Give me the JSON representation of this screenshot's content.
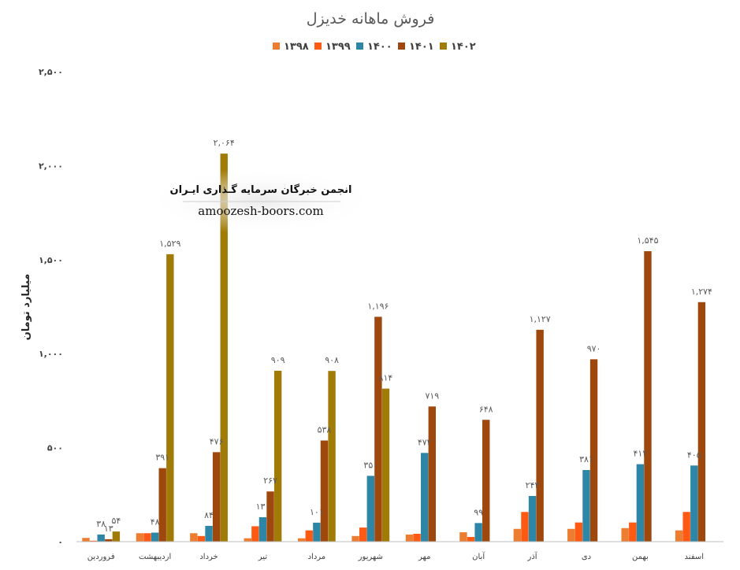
{
  "chart_data": {
    "type": "bar",
    "title": "فروش ماهانه خدیزل",
    "ylabel": "میلیارد تومان",
    "ylim": [
      0,
      2500
    ],
    "yticks": [
      "۰",
      "۵۰۰",
      "۱,۰۰۰",
      "۱,۵۰۰",
      "۲,۰۰۰",
      "۲,۵۰۰"
    ],
    "ytick_values": [
      0,
      500,
      1000,
      1500,
      2000,
      2500
    ],
    "grid": false,
    "legend_position": "top",
    "categories": [
      "فروردین",
      "اردیبهشت",
      "خرداد",
      "تیر",
      "مرداد",
      "شهریور",
      "مهر",
      "آبان",
      "آذر",
      "دی",
      "بهمن",
      "اسفند"
    ],
    "series": [
      {
        "name": "۱۳۹۸",
        "color": "#ED7D31",
        "values": [
          20,
          45,
          45,
          18,
          18,
          30,
          38,
          50,
          68,
          68,
          72,
          60
        ],
        "labels": [
          null,
          null,
          null,
          null,
          null,
          null,
          null,
          null,
          null,
          null,
          null,
          null
        ]
      },
      {
        "name": "۱۳۹۹",
        "color": "#FF5A14",
        "values": [
          5,
          45,
          30,
          82,
          60,
          75,
          42,
          25,
          158,
          102,
          102,
          158
        ],
        "labels": [
          null,
          null,
          null,
          null,
          null,
          null,
          null,
          null,
          null,
          null,
          null,
          null
        ]
      },
      {
        "name": "۱۴۰۰",
        "color": "#2E86A6",
        "values": [
          38,
          48,
          84,
          130,
          101,
          350,
          472,
          99,
          243,
          381,
          412,
          405
        ],
        "labels": [
          "۳۸",
          "۴۸",
          "۸۴",
          "۱۳۰",
          "۱۰۱",
          "۳۵۰",
          "۴۷۲",
          "۹۹",
          "۲۴۳",
          "۳۸۱",
          "۴۱۲",
          "۴۰۵"
        ]
      },
      {
        "name": "۱۴۰۱",
        "color": "#9E480E",
        "values": [
          13,
          391,
          476,
          267,
          538,
          1196,
          719,
          648,
          1127,
          970,
          1545,
          1274
        ],
        "labels": [
          "۱۳",
          "۳۹۱",
          "۴۷۶",
          "۲۶۷",
          "۵۳۸",
          "۱,۱۹۶",
          "۷۱۹",
          "۶۴۸",
          "۱,۱۲۷",
          "۹۷۰",
          "۱,۵۴۵",
          "۱,۲۷۴"
        ]
      },
      {
        "name": "۱۴۰۲",
        "color": "#A07B08",
        "values": [
          54,
          1529,
          2064,
          909,
          908,
          814,
          null,
          null,
          null,
          null,
          null,
          null
        ],
        "labels": [
          "۵۴",
          "۱,۵۲۹",
          "۲,۰۶۴",
          "۹۰۹",
          "۹۰۸",
          "۸۱۴",
          null,
          null,
          null,
          null,
          null,
          null
        ]
      }
    ]
  },
  "watermark": {
    "title": "انجمن خبرگان سرمایه گـذاری ایـران",
    "url": "amoozesh-boors.com"
  }
}
